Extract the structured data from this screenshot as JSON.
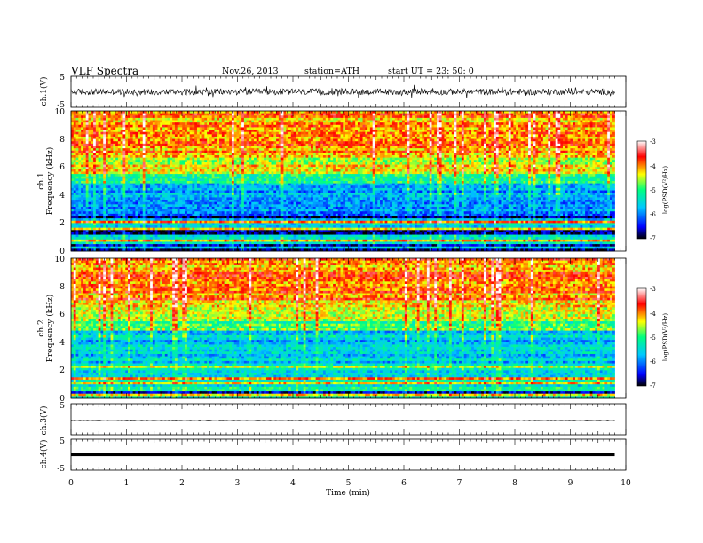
{
  "header": {
    "title": "VLF  Spectra",
    "date": "Nov.26, 2013",
    "station": "station=ATH",
    "start": "start  UT  =    23: 50: 0"
  },
  "colors": {
    "colormap": [
      "#000000",
      "#0000ff",
      "#00c8ff",
      "#00ff80",
      "#ffff00",
      "#ff0000",
      "#ffffff"
    ]
  },
  "chart_data": [
    {
      "type": "line",
      "ylabel": "ch.1(V)",
      "ylim": [
        -5,
        5
      ],
      "yticks": [
        "5",
        "-5"
      ],
      "xlim": [
        0,
        10
      ],
      "trace": "noisy waveform, roughly within -2 to 2 V"
    },
    {
      "type": "heatmap",
      "ylabel_line1": "ch.1",
      "ylabel_line2": "Frequency  (kHz)",
      "ylim": [
        0,
        10
      ],
      "yticks": [
        "0",
        "2",
        "4",
        "6",
        "8",
        "10"
      ],
      "xlim": [
        0,
        10
      ],
      "colorbar": {
        "label": "log(PSD(V²/Hz)",
        "range": [
          -7,
          -3
        ],
        "ticks": [
          "-3",
          "-4",
          "-5",
          "-6",
          "-7"
        ]
      }
    },
    {
      "type": "heatmap",
      "ylabel_line1": "ch.2",
      "ylabel_line2": "Frequency  (kHz)",
      "ylim": [
        0,
        10
      ],
      "yticks": [
        "0",
        "2",
        "4",
        "6",
        "8",
        "10"
      ],
      "xlim": [
        0,
        10
      ],
      "colorbar": {
        "label": "log(PSD(V²/Hz)",
        "range": [
          -7,
          -3
        ],
        "ticks": [
          "-3",
          "-4",
          "-5",
          "-6",
          "-7"
        ]
      }
    },
    {
      "type": "line",
      "ylabel": "ch.3(V)",
      "ylim": [
        -5,
        5
      ],
      "yticks": [
        "5",
        "-5"
      ],
      "xlim": [
        0,
        10
      ],
      "trace": "near-flat line slightly below 0 V"
    },
    {
      "type": "line",
      "ylabel": "ch.4(V)",
      "ylim": [
        -5,
        5
      ],
      "yticks": [
        "5",
        "-5"
      ],
      "xlim": [
        0,
        10
      ],
      "trace": "thick flat band near 0 V"
    }
  ],
  "xaxis": {
    "label": "Time  (min)",
    "ticks": [
      "0",
      "1",
      "2",
      "3",
      "4",
      "5",
      "6",
      "7",
      "8",
      "9",
      "10"
    ],
    "data_end": 9.8
  }
}
